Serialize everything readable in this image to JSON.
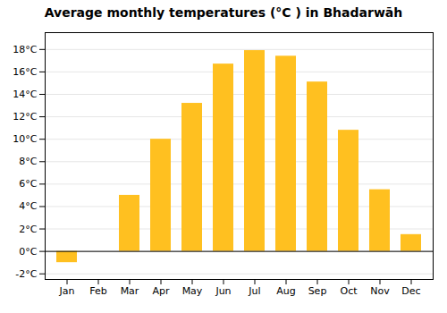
{
  "chart_data": {
    "type": "bar",
    "title": "Average monthly temperatures (°C ) in Bhadarwāh",
    "categories": [
      "Jan",
      "Feb",
      "Mar",
      "Apr",
      "May",
      "Jun",
      "Jul",
      "Aug",
      "Sep",
      "Oct",
      "Nov",
      "Dec"
    ],
    "values": [
      -1.0,
      0.0,
      5.0,
      10.0,
      13.2,
      16.7,
      17.9,
      17.4,
      15.1,
      10.8,
      5.5,
      1.5
    ],
    "color": "#FFC020",
    "ylim": [
      -2.5,
      19.5
    ],
    "yticks": [
      {
        "value": -2,
        "label": "-2°C"
      },
      {
        "value": 0,
        "label": "0°C"
      },
      {
        "value": 2,
        "label": "2°C"
      },
      {
        "value": 4,
        "label": "4°C"
      },
      {
        "value": 6,
        "label": "6°C"
      },
      {
        "value": 8,
        "label": "8°C"
      },
      {
        "value": 10,
        "label": "10°C"
      },
      {
        "value": 12,
        "label": "12°C"
      },
      {
        "value": 14,
        "label": "14°C"
      },
      {
        "value": 16,
        "label": "16°C"
      },
      {
        "value": 18,
        "label": "18°C"
      }
    ],
    "grid": true
  }
}
